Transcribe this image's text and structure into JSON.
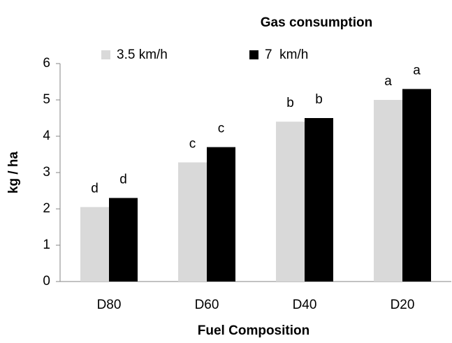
{
  "chart_data": {
    "type": "bar",
    "title": "Gas consumption",
    "x_label": "Fuel Composition",
    "y_label": "kg / ha",
    "categories": [
      "D80",
      "D60",
      "D40",
      "D20"
    ],
    "series": [
      {
        "name": "3.5 km/h",
        "color": "#d9d9d9",
        "values": [
          2.05,
          3.28,
          4.4,
          5.0
        ],
        "letters": [
          "d",
          "c",
          "b",
          "a"
        ]
      },
      {
        "name": "7  km/h",
        "color": "#000000",
        "values": [
          2.3,
          3.7,
          4.5,
          5.3
        ],
        "letters": [
          "d",
          "c",
          "b",
          "a"
        ]
      }
    ],
    "ylim": [
      0,
      6
    ],
    "yticks": [
      0,
      1,
      2,
      3,
      4,
      5,
      6
    ],
    "grid": false,
    "legend": "top"
  }
}
